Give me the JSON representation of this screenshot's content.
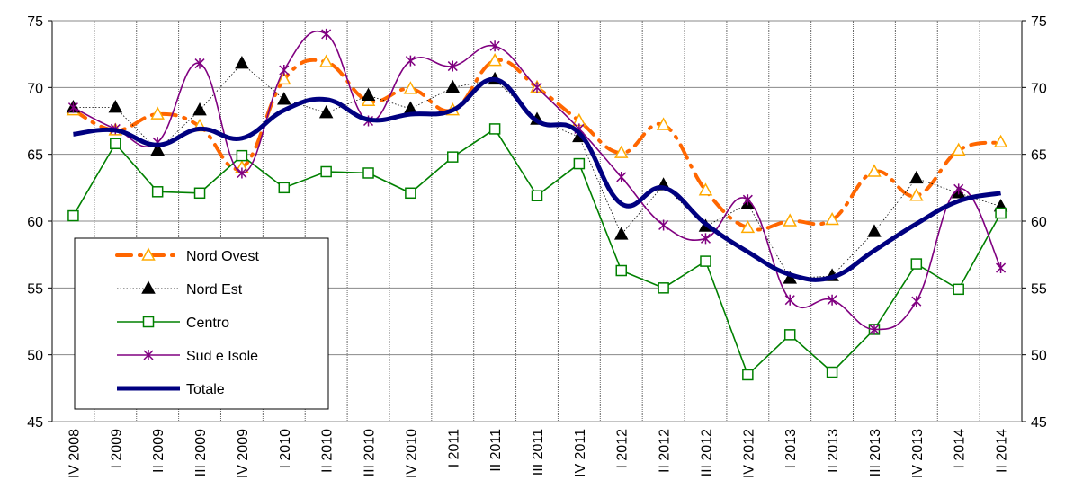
{
  "chart_data": {
    "type": "line",
    "categories": [
      "IV 2008",
      "I 2009",
      "II 2009",
      "III 2009",
      "IV 2009",
      "I 2010",
      "II 2010",
      "III 2010",
      "IV 2010",
      "I 2011",
      "II 2011",
      "III 2011",
      "IV 2011",
      "I 2012",
      "II 2012",
      "III 2012",
      "IV 2012",
      "I 2013",
      "II 2013",
      "III 2013",
      "IV 2013",
      "I 2014",
      "II 2014"
    ],
    "series": [
      {
        "name": "Nord Ovest",
        "color": "#ff6600",
        "marker_color": "#ffaa00",
        "marker": "triangle-open",
        "dash": "dash-dot",
        "width": 4,
        "smooth": true,
        "values": [
          68.3,
          66.8,
          68.0,
          67.1,
          64.0,
          70.6,
          71.9,
          69.0,
          69.9,
          68.3,
          72.0,
          70.0,
          67.5,
          65.1,
          67.2,
          62.3,
          59.5,
          60.0,
          60.1,
          63.7,
          61.9,
          65.3,
          65.9
        ]
      },
      {
        "name": "Nord Est",
        "color": "#000000",
        "marker_color": "#000000",
        "marker": "triangle",
        "dash": "dotted",
        "width": 0.8,
        "smooth": false,
        "values": [
          68.5,
          68.5,
          65.3,
          68.3,
          71.8,
          69.1,
          68.1,
          69.4,
          68.4,
          70.0,
          70.6,
          67.6,
          66.3,
          59.0,
          62.7,
          59.6,
          61.3,
          55.7,
          55.9,
          59.2,
          63.2,
          62.1,
          61.1
        ]
      },
      {
        "name": "Centro",
        "color": "#008000",
        "marker_color": "#008000",
        "marker": "square-open",
        "dash": "solid",
        "width": 1.6,
        "smooth": false,
        "values": [
          60.4,
          65.8,
          62.2,
          62.1,
          64.9,
          62.5,
          63.7,
          63.6,
          62.1,
          64.8,
          66.9,
          61.9,
          64.3,
          56.3,
          55.0,
          57.0,
          48.5,
          51.5,
          48.7,
          51.9,
          56.8,
          54.9,
          60.6
        ]
      },
      {
        "name": "Sud e Isole",
        "color": "#800080",
        "marker_color": "#800080",
        "marker": "star",
        "dash": "solid",
        "width": 1.6,
        "smooth": true,
        "values": [
          68.5,
          66.9,
          65.9,
          71.8,
          63.6,
          71.3,
          74.0,
          67.5,
          72.0,
          71.6,
          73.1,
          70.0,
          66.9,
          63.3,
          59.7,
          58.7,
          61.6,
          54.1,
          54.1,
          51.9,
          54.0,
          62.4,
          56.5
        ]
      },
      {
        "name": "Totale",
        "color": "#000080",
        "marker_color": "#000080",
        "marker": "none",
        "dash": "solid",
        "width": 5,
        "smooth": true,
        "values": [
          66.5,
          66.8,
          65.7,
          66.9,
          66.2,
          68.3,
          69.1,
          67.6,
          68.0,
          68.3,
          70.6,
          67.5,
          66.6,
          61.3,
          62.5,
          59.8,
          57.7,
          56.0,
          55.8,
          57.8,
          59.8,
          61.5,
          62.1
        ]
      }
    ],
    "ylim": [
      45,
      75
    ],
    "yticks": [
      45,
      50,
      55,
      60,
      65,
      70,
      75
    ],
    "grid": true,
    "legend": "lower left"
  }
}
